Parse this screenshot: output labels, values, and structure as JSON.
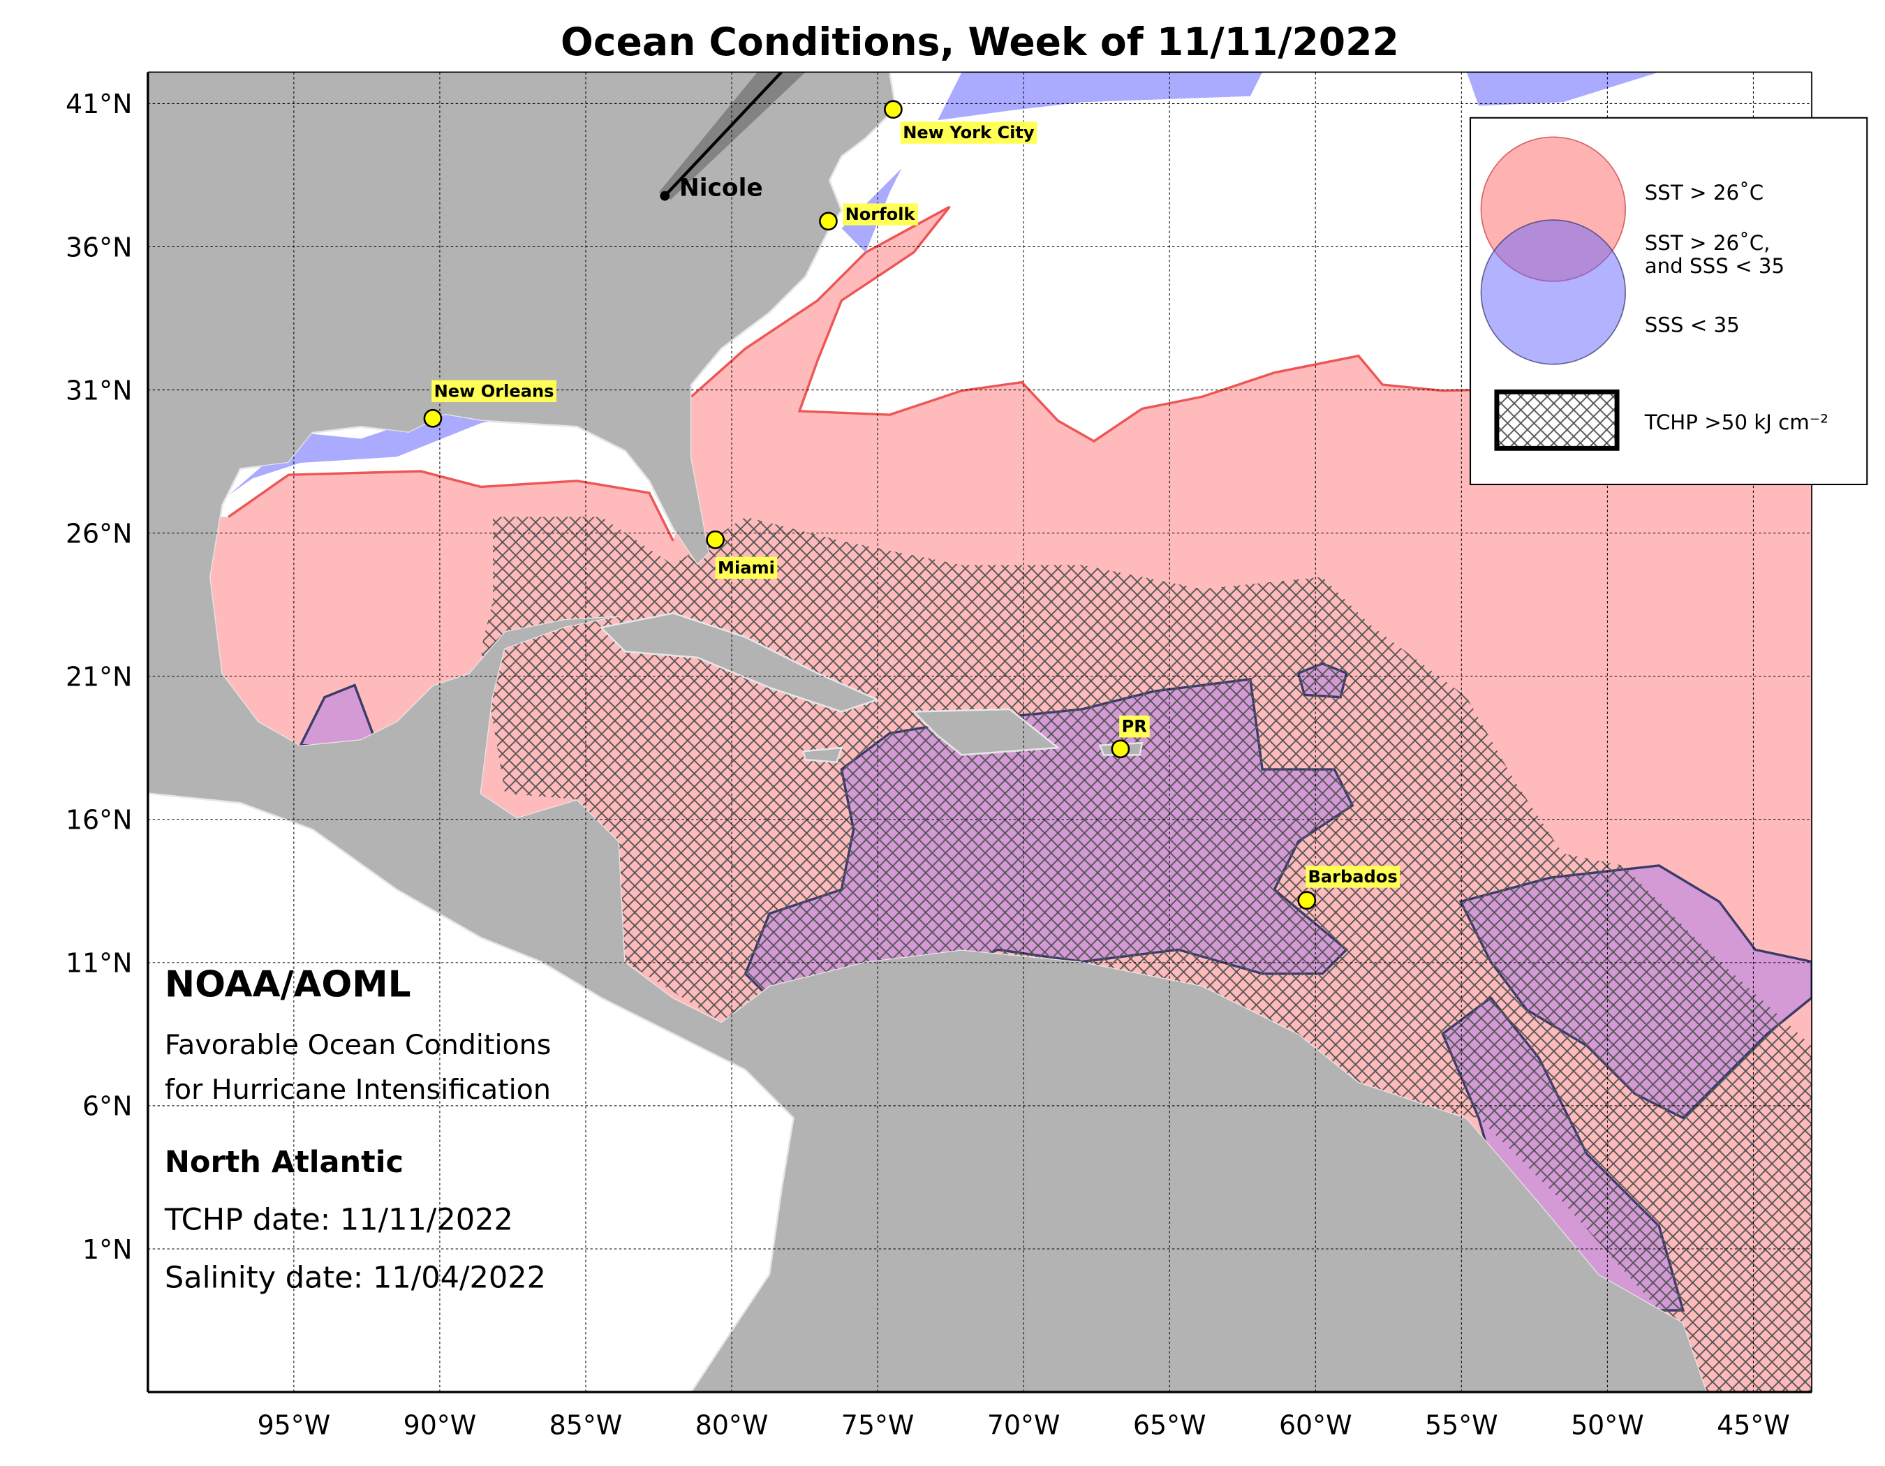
{
  "map": {
    "title": "Ocean Conditions, Week of 11/11/2022",
    "xlim": [
      -100,
      -43
    ],
    "ylim": [
      -4,
      42.1
    ],
    "lat_ticks": [
      {
        "value": 41,
        "label": "41°N"
      },
      {
        "value": 36,
        "label": "36°N"
      },
      {
        "value": 31,
        "label": "31°N"
      },
      {
        "value": 26,
        "label": "26°N"
      },
      {
        "value": 21,
        "label": "21°N"
      },
      {
        "value": 16,
        "label": "16°N"
      },
      {
        "value": 11,
        "label": "11°N"
      },
      {
        "value": 6,
        "label": "6°N"
      },
      {
        "value": 1,
        "label": "1°N"
      }
    ],
    "lon_ticks": [
      {
        "value": -95,
        "label": "95°W"
      },
      {
        "value": -90,
        "label": "90°W"
      },
      {
        "value": -85,
        "label": "85°W"
      },
      {
        "value": -80,
        "label": "80°W"
      },
      {
        "value": -75,
        "label": "75°W"
      },
      {
        "value": -70,
        "label": "70°W"
      },
      {
        "value": -65,
        "label": "65°W"
      },
      {
        "value": -60,
        "label": "60°W"
      },
      {
        "value": -55,
        "label": "55°W"
      },
      {
        "value": -50,
        "label": "50°W"
      },
      {
        "value": -45,
        "label": "45°W"
      }
    ],
    "storm": "Nicole",
    "cities": [
      "New York City",
      "Norfolk",
      "New Orleans",
      "Miami",
      "PR",
      "Barbados"
    ],
    "legend": [
      "SST > 26˚C",
      "SST > 26˚C,",
      "and SSS < 35",
      "SSS < 35",
      "TCHP >50 kJ cm⁻²"
    ],
    "info": {
      "org": "NOAA/AOML",
      "line1": "Favorable Ocean Conditions",
      "line2": "for Hurricane Intensification",
      "region": "North Atlantic",
      "tchp_date": "TCHP date: 11/11/2022",
      "salinity_date": "Salinity date: 11/04/2022"
    }
  }
}
